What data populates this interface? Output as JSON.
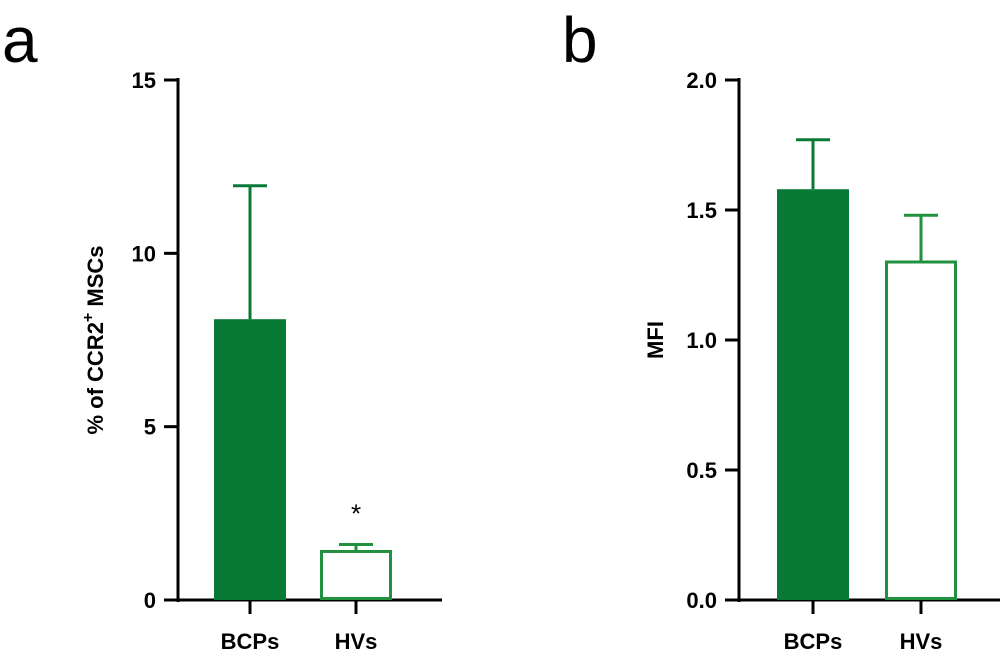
{
  "panels": [
    {
      "letter": "a",
      "ylabel_parts": [
        "% of CCR2",
        "+",
        " MSCs"
      ],
      "ytick_labels": [
        "0",
        "5",
        "10",
        "15"
      ],
      "annotation": "*"
    },
    {
      "letter": "b",
      "ylabel_parts": [
        "MFI"
      ],
      "ytick_labels": [
        "0.0",
        "0.5",
        "1.0",
        "1.5",
        "2.0"
      ],
      "annotation": ""
    }
  ],
  "colors": {
    "filled": "#087a35",
    "outline": "#21903f",
    "axis": "#000000"
  },
  "chart_data": [
    {
      "type": "bar",
      "title": "",
      "xlabel": "",
      "ylabel": "% of CCR2 + MSCs",
      "categories": [
        "BCPs",
        "HVs"
      ],
      "values": [
        8.1,
        1.4
      ],
      "errors_upper": [
        3.85,
        0.2
      ],
      "ylim": [
        0,
        15
      ],
      "yticks": [
        0,
        5,
        10,
        15
      ],
      "styles": [
        "filled",
        "outline"
      ],
      "annotations": [
        {
          "category": "HVs",
          "text": "*"
        }
      ]
    },
    {
      "type": "bar",
      "title": "",
      "xlabel": "",
      "ylabel": "MFI",
      "categories": [
        "BCPs",
        "HVs"
      ],
      "values": [
        1.58,
        1.3
      ],
      "errors_upper": [
        0.19,
        0.18
      ],
      "ylim": [
        0,
        2.0
      ],
      "yticks": [
        0,
        0.5,
        1.0,
        1.5,
        2.0
      ],
      "styles": [
        "filled",
        "outline"
      ],
      "annotations": []
    }
  ]
}
